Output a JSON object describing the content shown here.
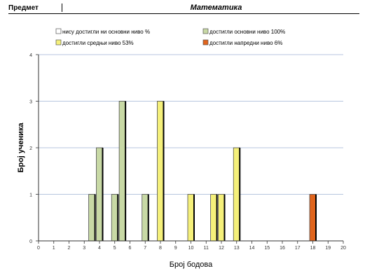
{
  "header": {
    "label": "Предмет",
    "subject": "Математика"
  },
  "chart_data": {
    "type": "bar",
    "xlabel": "Број бодова",
    "ylabel": "Број ученика",
    "ylim": [
      0,
      4
    ],
    "yticks": [
      0,
      1,
      2,
      3,
      4
    ],
    "x_categories": [
      "0",
      "1",
      "2",
      "3",
      "4",
      "5",
      "6",
      "7",
      "8",
      "9",
      "10",
      "11",
      "12",
      "13",
      "14",
      "15",
      "16",
      "17",
      "18",
      "19",
      "20"
    ],
    "grid": true,
    "legend_position": "top",
    "legend": [
      {
        "key": "none",
        "label": "нису достигли ни основни ниво %",
        "color": "#ffffff"
      },
      {
        "key": "basic",
        "label": "достигли основни ниво 100%",
        "color": "#c8d9a5"
      },
      {
        "key": "medium",
        "label": "достигли средњи ниво 53%",
        "color": "#f5f07a"
      },
      {
        "key": "advanced",
        "label": "достигли напредни ниво 6%",
        "color": "#e0641c"
      }
    ],
    "bars": [
      {
        "x": 3.5,
        "value": 1,
        "level": "basic"
      },
      {
        "x": 4,
        "value": 2,
        "level": "basic"
      },
      {
        "x": 5,
        "value": 1,
        "level": "basic"
      },
      {
        "x": 5.5,
        "value": 3,
        "level": "basic"
      },
      {
        "x": 7,
        "value": 1,
        "level": "basic"
      },
      {
        "x": 8,
        "value": 3,
        "level": "medium"
      },
      {
        "x": 10,
        "value": 1,
        "level": "medium"
      },
      {
        "x": 11.5,
        "value": 1,
        "level": "medium"
      },
      {
        "x": 12,
        "value": 1,
        "level": "medium"
      },
      {
        "x": 13,
        "value": 2,
        "level": "medium"
      },
      {
        "x": 18,
        "value": 1,
        "level": "advanced"
      }
    ]
  }
}
